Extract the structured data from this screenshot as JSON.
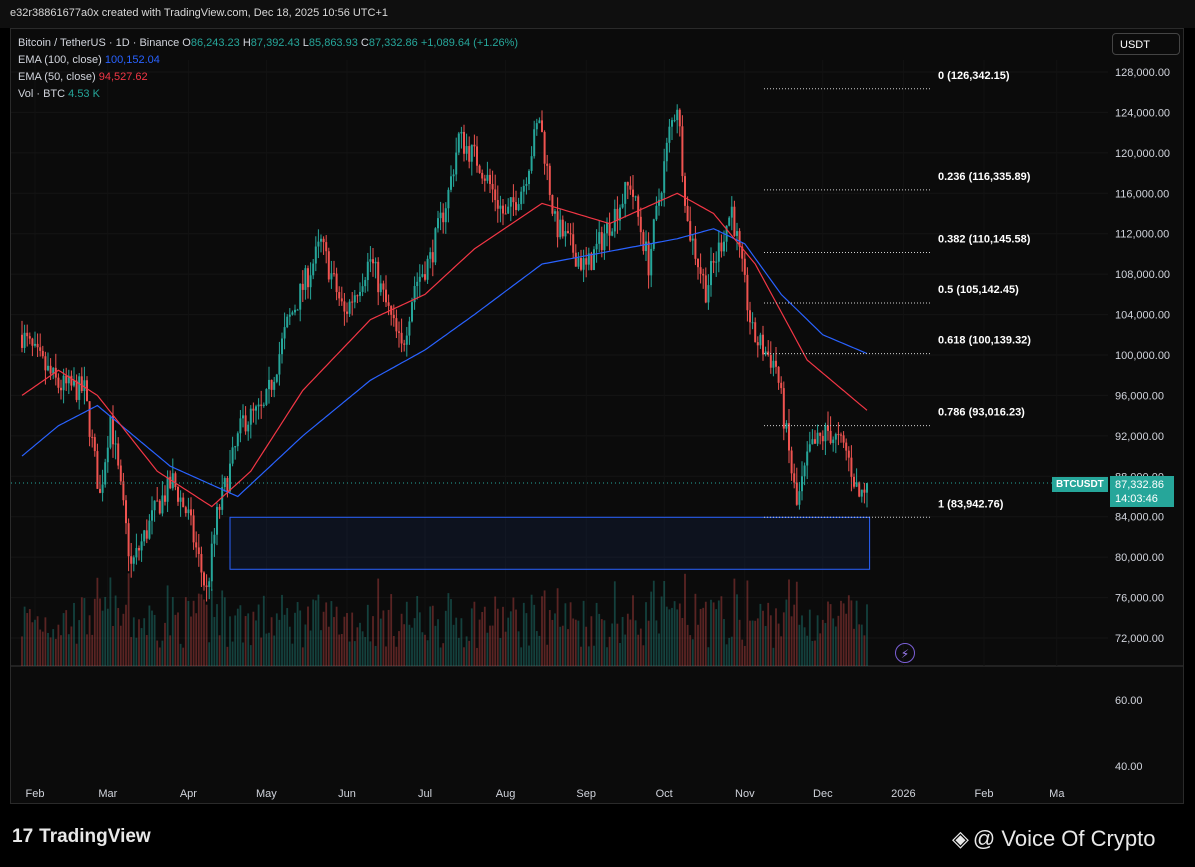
{
  "header": {
    "attribution": "e32r38861677a0x created with TradingView.com, Dec 18, 2025 10:56 UTC+1"
  },
  "legend": {
    "symbol": "Bitcoin / TetherUS · 1D · Binance",
    "ohlc": {
      "o_key": "O",
      "o": "86,243.23",
      "h_key": "H",
      "h": "87,392.43",
      "l_key": "L",
      "l": "85,863.93",
      "c_key": "C",
      "c": "87,332.86",
      "change": "+1,089.64 (+1.26%)"
    },
    "ema100_label": "EMA (100, close)",
    "ema100_value": "100,152.04",
    "ema50_label": "EMA (50, close)",
    "ema50_value": "94,527.62",
    "vol_label": "Vol · BTC",
    "vol_value": "4.53 K"
  },
  "currency_button": "USDT",
  "ticker_label": "BTCUSDT",
  "last_price": "87,332.86",
  "countdown": "14:03:46",
  "branding": {
    "logo_text": "TradingView",
    "watermark": "@ Voice Of Crypto"
  },
  "colors": {
    "up": "#26a69a",
    "down": "#ef5350",
    "ema100": "#2962ff",
    "ema50": "#f23645",
    "zone": "#2962ff"
  },
  "chart_data": {
    "type": "candlestick",
    "symbol": "BTCUSDT",
    "timeframe": "1D",
    "y_axis_ticks": [
      "128,000.00",
      "124,000.00",
      "120,000.00",
      "116,000.00",
      "112,000.00",
      "108,000.00",
      "104,000.00",
      "100,000.00",
      "96,000.00",
      "92,000.00",
      "88,000.00",
      "84,000.00",
      "80,000.00",
      "76,000.00",
      "72,000.00"
    ],
    "volume_axis_ticks": [
      "60.00",
      "40.00"
    ],
    "x_axis_ticks": [
      "Feb",
      "Mar",
      "Apr",
      "May",
      "Jun",
      "Jul",
      "Aug",
      "Sep",
      "Oct",
      "Nov",
      "Dec",
      "2026",
      "Feb",
      "Ma"
    ],
    "ylim": [
      70000,
      130000
    ],
    "price_anchors": [
      [
        "2025-01-27",
        102000
      ],
      [
        "2025-02-01",
        100000
      ],
      [
        "2025-02-10",
        97000
      ],
      [
        "2025-02-20",
        96500
      ],
      [
        "2025-02-26",
        86000
      ],
      [
        "2025-03-02",
        94000
      ],
      [
        "2025-03-10",
        79000
      ],
      [
        "2025-03-20",
        85000
      ],
      [
        "2025-03-26",
        87500
      ],
      [
        "2025-04-01",
        84000
      ],
      [
        "2025-04-08",
        76500
      ],
      [
        "2025-04-12",
        84000
      ],
      [
        "2025-04-22",
        93500
      ],
      [
        "2025-04-30",
        94500
      ],
      [
        "2025-05-09",
        103000
      ],
      [
        "2025-05-22",
        111000
      ],
      [
        "2025-05-31",
        104000
      ],
      [
        "2025-06-10",
        109500
      ],
      [
        "2025-06-22",
        100500
      ],
      [
        "2025-06-27",
        107000
      ],
      [
        "2025-07-03",
        109500
      ],
      [
        "2025-07-10",
        116000
      ],
      [
        "2025-07-14",
        121500
      ],
      [
        "2025-07-22",
        119000
      ],
      [
        "2025-08-01",
        113500
      ],
      [
        "2025-08-08",
        117000
      ],
      [
        "2025-08-14",
        123500
      ],
      [
        "2025-08-20",
        113000
      ],
      [
        "2025-09-01",
        108500
      ],
      [
        "2025-09-10",
        113000
      ],
      [
        "2025-09-18",
        117000
      ],
      [
        "2025-09-25",
        109000
      ],
      [
        "2025-10-03",
        122000
      ],
      [
        "2025-10-06",
        125000
      ],
      [
        "2025-10-10",
        113000
      ],
      [
        "2025-10-17",
        106500
      ],
      [
        "2025-10-27",
        114500
      ],
      [
        "2025-11-04",
        102000
      ],
      [
        "2025-11-13",
        99000
      ],
      [
        "2025-11-21",
        85000
      ],
      [
        "2025-11-26",
        90500
      ],
      [
        "2025-12-03",
        92500
      ],
      [
        "2025-12-10",
        90500
      ],
      [
        "2025-12-15",
        86000
      ],
      [
        "2025-12-18",
        87332.86
      ]
    ],
    "ema100_anchors": [
      [
        "2025-01-27",
        90000
      ],
      [
        "2025-02-10",
        93000
      ],
      [
        "2025-02-25",
        95000
      ],
      [
        "2025-03-25",
        89000
      ],
      [
        "2025-04-20",
        86000
      ],
      [
        "2025-05-15",
        92000
      ],
      [
        "2025-06-10",
        97500
      ],
      [
        "2025-07-01",
        100500
      ],
      [
        "2025-07-20",
        104000
      ],
      [
        "2025-08-15",
        109000
      ],
      [
        "2025-09-15",
        110500
      ],
      [
        "2025-10-06",
        111500
      ],
      [
        "2025-10-20",
        112500
      ],
      [
        "2025-11-01",
        111000
      ],
      [
        "2025-11-15",
        106000
      ],
      [
        "2025-12-01",
        102000
      ],
      [
        "2025-12-18",
        100152.04
      ]
    ],
    "ema50_anchors": [
      [
        "2025-01-27",
        96000
      ],
      [
        "2025-02-10",
        98500
      ],
      [
        "2025-02-25",
        96000
      ],
      [
        "2025-03-20",
        88500
      ],
      [
        "2025-04-10",
        85000
      ],
      [
        "2025-04-25",
        88500
      ],
      [
        "2025-05-15",
        96500
      ],
      [
        "2025-06-10",
        103500
      ],
      [
        "2025-07-01",
        106000
      ],
      [
        "2025-07-20",
        110500
      ],
      [
        "2025-08-15",
        115000
      ],
      [
        "2025-09-10",
        113000
      ],
      [
        "2025-10-06",
        116000
      ],
      [
        "2025-10-20",
        114000
      ],
      [
        "2025-11-05",
        109000
      ],
      [
        "2025-11-25",
        99500
      ],
      [
        "2025-12-18",
        94527.62
      ]
    ],
    "fibonacci": [
      {
        "label": "0 (126,342.15)",
        "price": 126342.15
      },
      {
        "label": "0.236 (116,335.89)",
        "price": 116335.89
      },
      {
        "label": "0.382 (110,145.58)",
        "price": 110145.58
      },
      {
        "label": "0.5 (105,142.45)",
        "price": 105142.45
      },
      {
        "label": "0.618 (100,139.32)",
        "price": 100139.32
      },
      {
        "label": "0.786 (93,016.23)",
        "price": 93016.23
      },
      {
        "label": "1 (83,942.76)",
        "price": 83942.76
      }
    ],
    "demand_zone": {
      "start": "2025-04-17",
      "end": "2025-12-19",
      "top": 83942.76,
      "bottom": 78800
    },
    "last_price": 87332.86
  }
}
